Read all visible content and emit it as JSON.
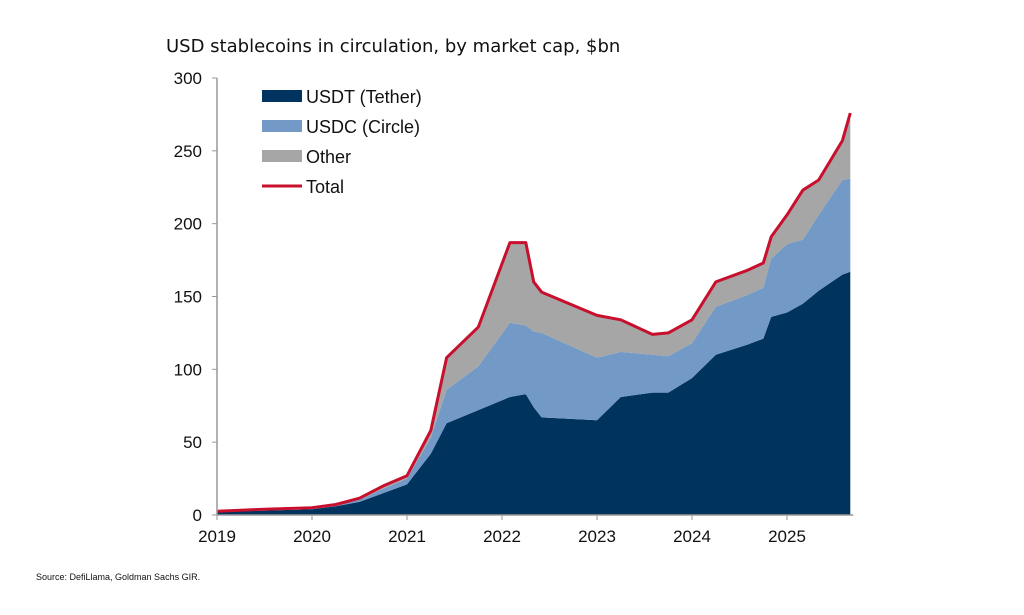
{
  "chart_data": {
    "type": "area",
    "stacked": true,
    "title": "USD stablecoins in circulation, by market cap, $bn",
    "source": "Source: DefiLlama, Goldman Sachs GIR.",
    "ylim": [
      0,
      300
    ],
    "yticks": [
      0,
      50,
      100,
      150,
      200,
      250,
      300
    ],
    "xticks": [
      "2019",
      "2020",
      "2021",
      "2022",
      "2023",
      "2024",
      "2025"
    ],
    "xlim": [
      "2019-01",
      "2025-09"
    ],
    "grid": false,
    "legend_position": "top-left",
    "x": [
      "2019-01",
      "2019-07",
      "2020-01",
      "2020-04",
      "2020-07",
      "2020-10",
      "2021-01",
      "2021-04",
      "2021-06",
      "2021-10",
      "2022-02",
      "2022-04",
      "2022-05",
      "2022-06",
      "2023-01",
      "2023-04",
      "2023-08",
      "2023-10",
      "2024-01",
      "2024-04",
      "2024-08",
      "2024-10",
      "2024-11",
      "2025-01",
      "2025-03",
      "2025-05",
      "2025-08",
      "2025-09"
    ],
    "series": [
      {
        "name": "USDT (Tether)",
        "color": "#00335e",
        "values": [
          2,
          3,
          4,
          6,
          9,
          15,
          21,
          42,
          63,
          72,
          81,
          83,
          74,
          67,
          65,
          81,
          84,
          84,
          94,
          110,
          117,
          121,
          136,
          139,
          145,
          154,
          165,
          167
        ]
      },
      {
        "name": "USDC (Circle)",
        "color": "#7399c6",
        "values": [
          0.3,
          0.5,
          0.5,
          0.7,
          1.5,
          3,
          4,
          11,
          23,
          30,
          51,
          47,
          52,
          58,
          43,
          31,
          26,
          25,
          24,
          33,
          34,
          35,
          40,
          47,
          44,
          52,
          65,
          64
        ]
      },
      {
        "name": "Other",
        "color": "#a6a6a6",
        "values": [
          0.3,
          0.5,
          0.5,
          0.5,
          1,
          2,
          2,
          5,
          22,
          27,
          55,
          57,
          34,
          28,
          29,
          22,
          14,
          16,
          16,
          17,
          17,
          17,
          15,
          20,
          34,
          24,
          27,
          45
        ]
      }
    ],
    "total": {
      "name": "Total",
      "color": "#c8102e",
      "values": [
        2.6,
        4,
        5,
        7.2,
        11.5,
        20,
        27,
        58,
        108,
        129,
        187,
        187,
        160,
        153,
        137,
        134,
        124,
        125,
        134,
        160,
        168,
        173,
        191,
        206,
        223,
        230,
        257,
        276
      ]
    }
  }
}
